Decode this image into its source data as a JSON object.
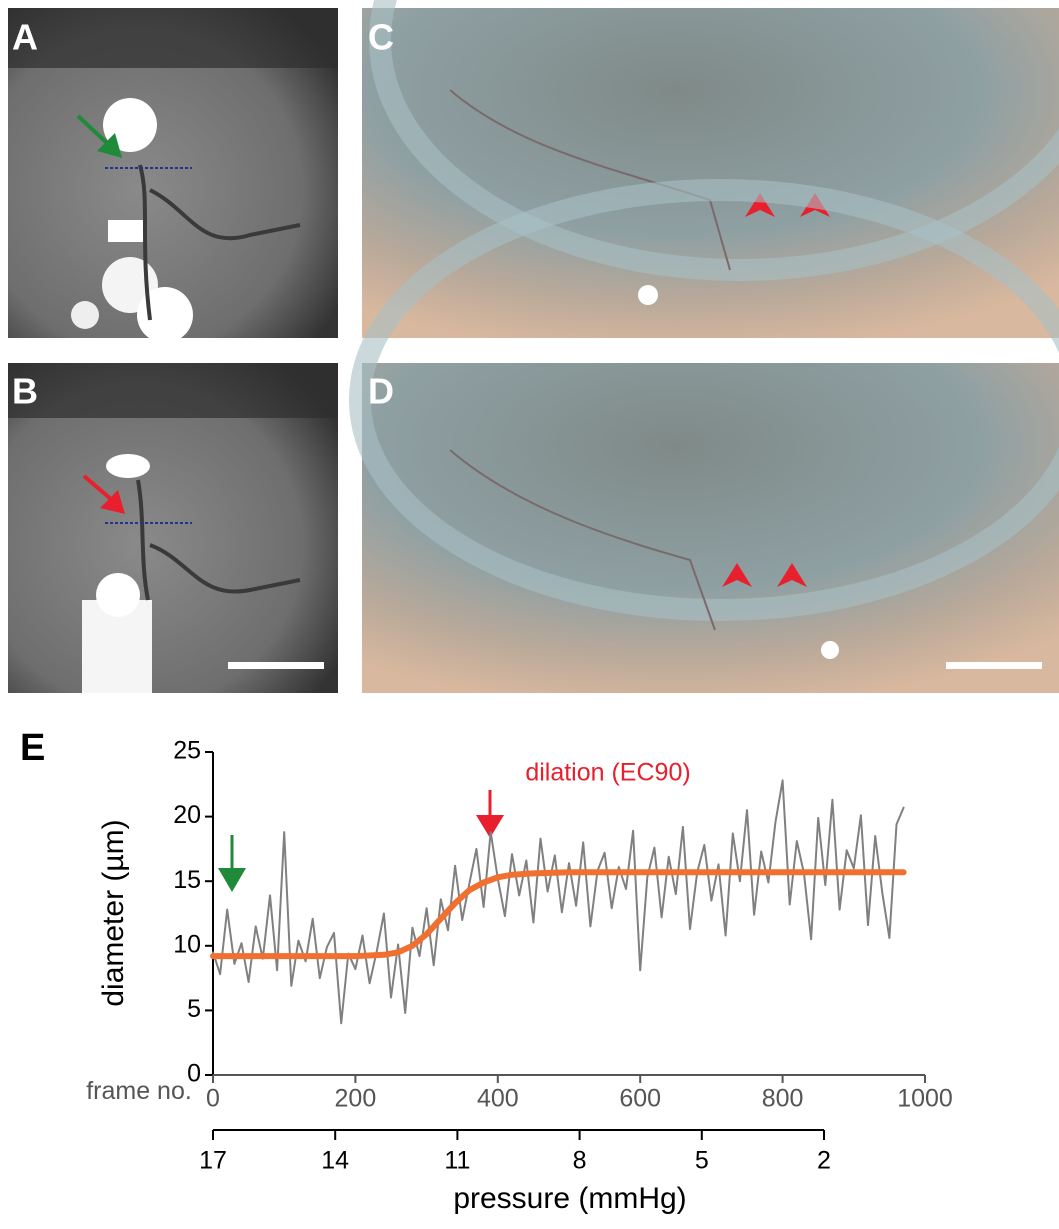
{
  "panel_labels": [
    "A",
    "B",
    "C",
    "D",
    "E"
  ],
  "chart_data": {
    "type": "line",
    "annotation": "dilation (EC90)",
    "y_axis_label": "diameter (µm)",
    "x_axis_label": "frame no.",
    "x2_axis_label": "pressure (mmHg)",
    "xlim": [
      0,
      1000
    ],
    "xticks": [
      0,
      200,
      400,
      600,
      800,
      1000
    ],
    "ylim": [
      0,
      25
    ],
    "yticks": [
      0,
      5,
      10,
      15,
      20,
      25
    ],
    "x2lim": [
      17,
      2
    ],
    "x2ticks": [
      17,
      14,
      11,
      8,
      5,
      2
    ],
    "x": [
      0,
      10,
      20,
      30,
      40,
      50,
      60,
      70,
      80,
      90,
      100,
      110,
      120,
      130,
      140,
      150,
      160,
      170,
      180,
      190,
      200,
      210,
      220,
      230,
      240,
      250,
      260,
      270,
      280,
      290,
      300,
      310,
      320,
      330,
      340,
      350,
      360,
      370,
      380,
      390,
      400,
      410,
      420,
      430,
      440,
      450,
      460,
      470,
      480,
      490,
      500,
      510,
      520,
      530,
      540,
      550,
      560,
      570,
      580,
      590,
      600,
      610,
      620,
      630,
      640,
      650,
      660,
      670,
      680,
      690,
      700,
      710,
      720,
      730,
      740,
      750,
      760,
      770,
      780,
      790,
      800,
      810,
      820,
      830,
      840,
      850,
      860,
      870,
      880,
      890,
      900,
      910,
      920,
      930,
      940,
      950,
      960,
      970
    ],
    "series": [
      {
        "color": "#808080",
        "values": [
          9.5,
          7.8,
          12.8,
          8.6,
          10.2,
          7.2,
          11.5,
          9.0,
          13.9,
          8.1,
          18.8,
          6.9,
          10.4,
          8.8,
          12.1,
          7.5,
          9.9,
          11.0,
          4.0,
          9.4,
          8.2,
          10.8,
          7.1,
          9.6,
          12.5,
          6.0,
          10.1,
          4.8,
          11.4,
          9.2,
          12.9,
          8.5,
          13.6,
          11.2,
          16.2,
          12.0,
          14.8,
          17.5,
          13.0,
          18.8,
          15.2,
          12.3,
          17.1,
          13.9,
          16.6,
          11.8,
          18.3,
          14.2,
          17.0,
          12.6,
          16.4,
          13.1,
          18.0,
          11.5,
          15.8,
          17.2,
          12.9,
          16.1,
          14.4,
          18.9,
          8.1,
          15.3,
          17.6,
          12.2,
          16.9,
          14.0,
          19.2,
          11.3,
          15.7,
          17.8,
          13.5,
          16.3,
          10.8,
          18.7,
          15.0,
          20.5,
          12.4,
          17.3,
          14.9,
          19.6,
          22.8,
          13.2,
          18.1,
          15.6,
          10.5,
          19.9,
          14.7,
          21.3,
          12.8,
          17.4,
          16.0,
          20.1,
          11.6,
          18.5,
          14.1,
          10.6,
          19.4,
          20.7
        ]
      },
      {
        "color": "#f07030",
        "x": [
          0,
          100,
          200,
          240,
          260,
          280,
          300,
          320,
          340,
          360,
          380,
          400,
          420,
          450,
          500,
          600,
          700,
          800,
          900,
          970
        ],
        "values": [
          9.2,
          9.2,
          9.2,
          9.3,
          9.5,
          10.0,
          10.9,
          12.1,
          13.3,
          14.3,
          14.9,
          15.3,
          15.5,
          15.6,
          15.7,
          15.7,
          15.7,
          15.7,
          15.7,
          15.7
        ]
      }
    ]
  }
}
